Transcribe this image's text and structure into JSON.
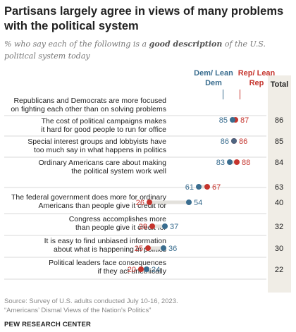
{
  "title": "Partisans largely agree in views of many problems with the political system",
  "subtitle_prefix": "% who say each of the following is a ",
  "subtitle_emphasis": "good description",
  "subtitle_suffix": " of the U.S. political system today",
  "legend": {
    "dem": "Dem/ Lean Dem",
    "rep": "Rep/ Lean Rep",
    "total": "Total"
  },
  "colors": {
    "dem": "#3a6d8f",
    "rep": "#c5352e",
    "connector": "#e3e1dc",
    "total_bg": "#f0ede6"
  },
  "chart_data": {
    "type": "dot",
    "xlim": [
      0,
      100
    ],
    "series_names": [
      "Dem/Lean Dem",
      "Rep/Lean Rep",
      "Total"
    ],
    "rows": [
      {
        "label": [
          "Republicans and Democrats are more focused",
          "on fighting each other than on solving problems"
        ],
        "dem": 85,
        "rep": 87,
        "total": 86
      },
      {
        "label": [
          "The cost of political campaigns makes",
          "it hard for good people to run for office"
        ],
        "dem": 86,
        "rep": 86,
        "total": 85
      },
      {
        "label": [
          "Special interest groups and lobbyists have",
          "too much say in what happens in politics"
        ],
        "dem": 83,
        "rep": 88,
        "total": 84
      },
      {
        "label": [
          "Ordinary Americans care about making",
          "the political system work well"
        ],
        "dem": 61,
        "rep": 67,
        "total": 63
      },
      {
        "label": [
          "The federal government does more for ordinary",
          "Americans than people give it credit for"
        ],
        "dem": 54,
        "rep": 26,
        "total": 40
      },
      {
        "label": [
          "Congress accomplishes more",
          "than people give it credit for"
        ],
        "dem": 37,
        "rep": 28,
        "total": 32
      },
      {
        "label": [
          "It is easy to find unbiased information",
          "about what is happening in politics"
        ],
        "dem": 36,
        "rep": 25,
        "total": 30
      },
      {
        "label": [
          "Political leaders face consequences",
          "if they act unethically"
        ],
        "dem": 24,
        "rep": 20,
        "total": 22
      }
    ]
  },
  "source": "Source: Survey of U.S. adults conducted July 10-16, 2023.",
  "report": "“Americans’ Dismal Views of the Nation’s Politics”",
  "brand": "PEW RESEARCH CENTER"
}
